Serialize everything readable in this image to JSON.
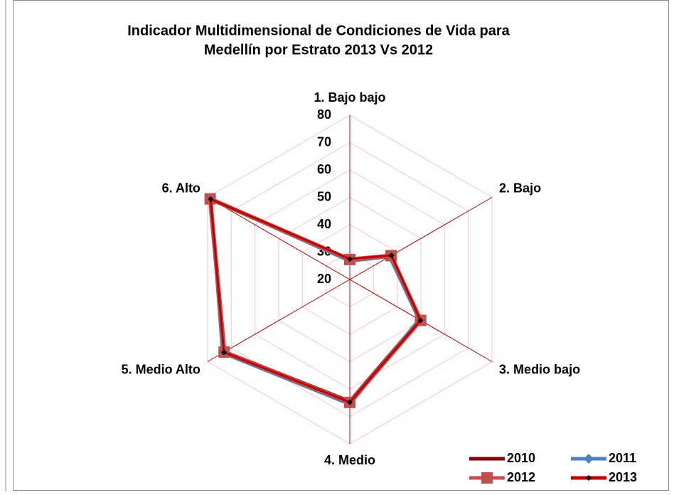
{
  "chart_data": {
    "type": "radar",
    "title": [
      "Indicador Multidimensional de Condiciones de Vida para",
      "Medellín por Estrato 2013 Vs 2012"
    ],
    "categories": [
      "1. Bajo bajo",
      "2. Bajo",
      "3. Medio bajo",
      "4. Medio",
      "5. Medio Alto",
      "6. Alto"
    ],
    "ylim": [
      20,
      80
    ],
    "yticks": [
      20,
      30,
      40,
      50,
      60,
      70,
      80
    ],
    "grid": true,
    "legend": "bottom-right",
    "series": [
      {
        "name": "2010",
        "color": "#7b0a0a",
        "marker": "dash",
        "values": [
          27.0,
          37.0,
          49.5,
          64.5,
          72.8,
          78.8
        ]
      },
      {
        "name": "2011",
        "color": "#4f81bd",
        "marker": "diamond",
        "values": [
          26.8,
          36.8,
          49.3,
          65.5,
          73.6,
          78.6
        ]
      },
      {
        "name": "2012",
        "color": "#c0504d",
        "marker": "square",
        "values": [
          27.3,
          37.4,
          49.9,
          64.9,
          73.0,
          78.9
        ]
      },
      {
        "name": "2013",
        "color": "#c00000",
        "marker": "diamond-black",
        "values": [
          27.5,
          37.6,
          49.8,
          64.8,
          73.1,
          78.7
        ]
      }
    ]
  }
}
